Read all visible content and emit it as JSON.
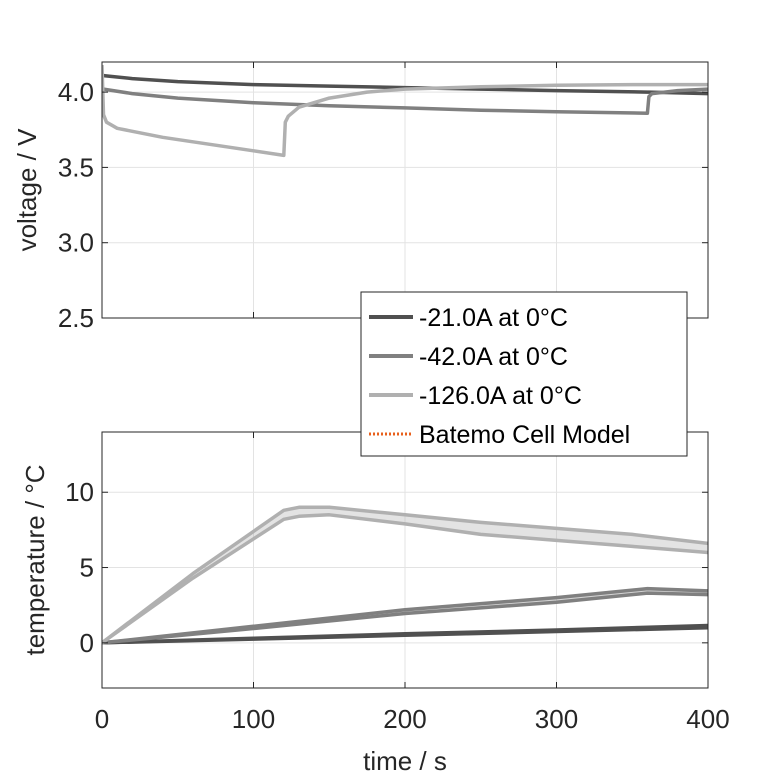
{
  "chart_data": [
    {
      "type": "line",
      "xlabel": "",
      "ylabel": "voltage / V",
      "xlim": [
        0,
        400
      ],
      "ylim": [
        2.5,
        4.2
      ],
      "xticks": [
        0,
        100,
        200,
        300,
        400
      ],
      "yticks": [
        2.5,
        3.0,
        3.5,
        4.0
      ],
      "ytick_labels": [
        "2.5",
        "3.0",
        "3.5",
        "4.0"
      ],
      "grid": true,
      "legend_position": "bottom-right",
      "series": [
        {
          "name": "-21.0A at 0°C",
          "color": "#505050",
          "x": [
            0,
            1,
            20,
            50,
            100,
            150,
            200,
            250,
            300,
            360,
            361,
            400
          ],
          "y": [
            4.12,
            4.11,
            4.09,
            4.07,
            4.05,
            4.04,
            4.03,
            4.02,
            4.01,
            4.0,
            4.0,
            3.99
          ]
        },
        {
          "name": "-42.0A at 0°C",
          "color": "#808080",
          "x": [
            0,
            1,
            20,
            50,
            100,
            150,
            200,
            250,
            300,
            360,
            361,
            363,
            380,
            400
          ],
          "y": [
            4.03,
            4.02,
            3.99,
            3.96,
            3.93,
            3.91,
            3.895,
            3.88,
            3.87,
            3.86,
            3.97,
            3.99,
            4.01,
            4.02
          ]
        },
        {
          "name": "-126.0A at 0°C",
          "color": "#b0b0b0",
          "x": [
            0,
            1,
            3,
            10,
            20,
            40,
            60,
            80,
            100,
            120,
            121,
            123,
            130,
            150,
            175,
            200,
            250,
            300,
            350,
            400
          ],
          "y": [
            4.18,
            3.85,
            3.8,
            3.76,
            3.74,
            3.7,
            3.67,
            3.64,
            3.61,
            3.58,
            3.8,
            3.84,
            3.9,
            3.96,
            4.0,
            4.02,
            4.035,
            4.045,
            4.05,
            4.05
          ]
        }
      ]
    },
    {
      "type": "line",
      "xlabel": "time / s",
      "ylabel": "temperature / °C",
      "xlim": [
        0,
        400
      ],
      "ylim": [
        -3,
        14
      ],
      "xticks": [
        0,
        100,
        200,
        300,
        400
      ],
      "yticks": [
        0,
        5,
        10
      ],
      "ytick_labels": [
        "0",
        "5",
        "10"
      ],
      "grid": true,
      "series": [
        {
          "name": "-21.0A at 0°C",
          "color": "#505050",
          "bands": [
            {
              "x": [
                0,
                100,
                200,
                300,
                400
              ],
              "y": [
                0,
                0.3,
                0.6,
                0.85,
                1.15
              ]
            },
            {
              "x": [
                0,
                100,
                200,
                300,
                400
              ],
              "y": [
                0,
                0.25,
                0.5,
                0.75,
                1.0
              ]
            }
          ]
        },
        {
          "name": "-42.0A at 0°C",
          "color": "#808080",
          "bands": [
            {
              "x": [
                0,
                100,
                200,
                300,
                360,
                400
              ],
              "y": [
                0,
                1.1,
                2.2,
                3.0,
                3.6,
                3.45
              ]
            },
            {
              "x": [
                0,
                100,
                200,
                300,
                360,
                400
              ],
              "y": [
                0,
                0.95,
                1.95,
                2.7,
                3.3,
                3.2
              ]
            }
          ]
        },
        {
          "name": "-126.0A at 0°C",
          "color": "#b0b0b0",
          "bands": [
            {
              "x": [
                0,
                60,
                120,
                130,
                150,
                200,
                250,
                300,
                350,
                400
              ],
              "y": [
                0,
                4.6,
                8.8,
                9.0,
                9.0,
                8.5,
                8.0,
                7.6,
                7.2,
                6.6
              ]
            },
            {
              "x": [
                0,
                60,
                120,
                130,
                150,
                200,
                250,
                300,
                350,
                400
              ],
              "y": [
                0,
                4.3,
                8.2,
                8.4,
                8.5,
                7.9,
                7.2,
                6.8,
                6.4,
                6.0
              ]
            }
          ]
        }
      ]
    }
  ],
  "legend": {
    "entries": [
      {
        "label": "-21.0A at 0°C",
        "color": "#505050",
        "style": "solid"
      },
      {
        "label": "-42.0A at 0°C",
        "color": "#808080",
        "style": "solid"
      },
      {
        "label": "-126.0A at 0°C",
        "color": "#b0b0b0",
        "style": "solid"
      },
      {
        "label": "Batemo Cell Model",
        "color": "#e8601c",
        "style": "dotted"
      }
    ]
  }
}
